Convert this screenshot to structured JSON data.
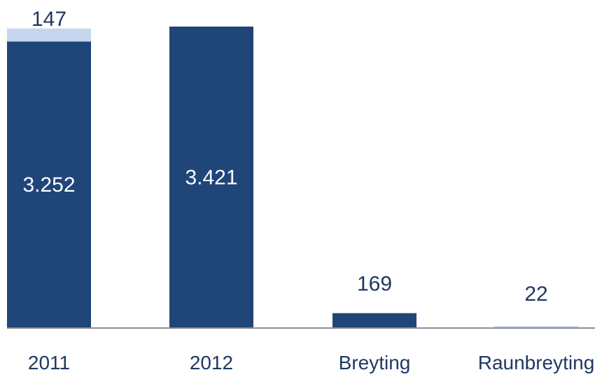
{
  "chart_data": {
    "type": "bar",
    "stacked": true,
    "categories": [
      "2011",
      "2012",
      "Breyting",
      "Raunbreyting"
    ],
    "series": [
      {
        "values": [
          3252,
          3421,
          169,
          0
        ],
        "labels": [
          "3.252",
          "3.421",
          "169",
          ""
        ],
        "color": "#1f4579"
      },
      {
        "values": [
          147,
          0,
          0,
          22
        ],
        "labels": [
          "147",
          "",
          "",
          "22"
        ],
        "color": "#c5d6ee"
      }
    ],
    "title": "",
    "xlabel": "",
    "ylabel": "",
    "ylim": [
      0,
      3421
    ],
    "grid": false,
    "legend": "none"
  }
}
